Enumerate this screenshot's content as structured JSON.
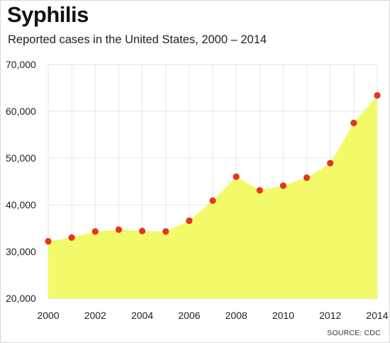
{
  "header": {
    "title": "Syphilis",
    "subtitle": "Reported cases in the United States, 2000 – 2014"
  },
  "footer": {
    "source": "SOURCE: CDC"
  },
  "colors": {
    "area_fill": "#f2fa6a",
    "point": "#e8341c",
    "grid": "#e6e6e6",
    "baseline": "#cfcfcf"
  },
  "chart_data": {
    "type": "area",
    "title": "Syphilis",
    "subtitle": "Reported cases in the United States, 2000 – 2014",
    "xlabel": "",
    "ylabel": "",
    "x": [
      2000,
      2001,
      2002,
      2003,
      2004,
      2005,
      2006,
      2007,
      2008,
      2009,
      2010,
      2011,
      2012,
      2013,
      2014
    ],
    "series": [
      {
        "values": [
          32200,
          33000,
          34300,
          34700,
          34400,
          34300,
          36600,
          40900,
          46000,
          43100,
          44100,
          45800,
          48900,
          57500,
          63400
        ]
      }
    ],
    "ylim": [
      20000,
      70000
    ],
    "y_ticks": [
      20000,
      30000,
      40000,
      50000,
      60000,
      70000
    ],
    "y_tick_labels": [
      "20,000",
      "30,000",
      "40,000",
      "50,000",
      "60,000",
      "70,000"
    ],
    "x_ticks": [
      2000,
      2002,
      2004,
      2006,
      2008,
      2010,
      2012,
      2014
    ],
    "x_tick_labels": [
      "2000",
      "2002",
      "2004",
      "2006",
      "2008",
      "2010",
      "2012",
      "2014"
    ],
    "markers": true,
    "grid": "vertical and horizontal",
    "legend": "none"
  }
}
